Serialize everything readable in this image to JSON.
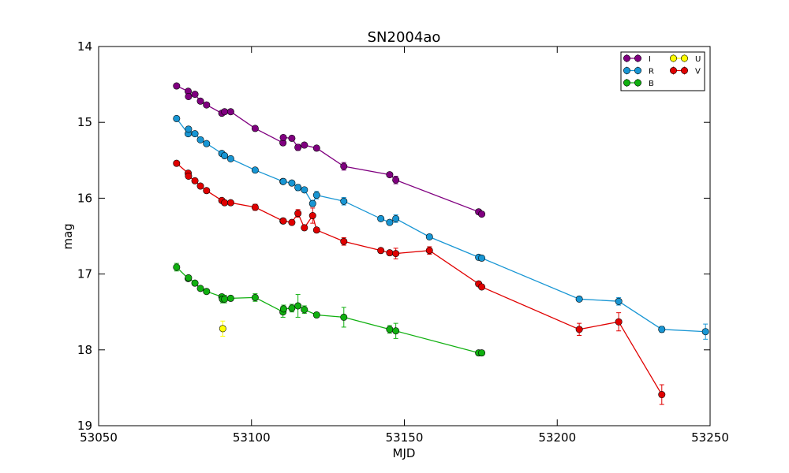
{
  "chart_data": {
    "type": "scatter",
    "title": "SN2004ao",
    "xlabel": "MJD",
    "ylabel": "mag",
    "xlim": [
      53050,
      53250
    ],
    "ylim": [
      14,
      19
    ],
    "y_inverted": true,
    "xticks": [
      "53050",
      "53100",
      "53150",
      "53200",
      "53250"
    ],
    "yticks": [
      "14",
      "15",
      "16",
      "17",
      "18",
      "19"
    ],
    "grid": false,
    "legend_position": "top-right",
    "series": [
      {
        "name": "I",
        "color": "#800080",
        "connected": true,
        "points": [
          [
            53075.5,
            14.52,
            0.02
          ],
          [
            53079.3,
            14.59,
            0.02
          ],
          [
            53079.4,
            14.66,
            0.02
          ],
          [
            53081.5,
            14.63,
            0.02
          ],
          [
            53083.3,
            14.72,
            0.02
          ],
          [
            53085.3,
            14.77,
            0.02
          ],
          [
            53090.3,
            14.88,
            0.02
          ],
          [
            53091.2,
            14.86,
            0.02
          ],
          [
            53093.2,
            14.86,
            0.02
          ],
          [
            53101.2,
            15.08,
            0.03
          ],
          [
            53110.3,
            15.27,
            0.03
          ],
          [
            53110.4,
            15.2,
            0.03
          ],
          [
            53113.2,
            15.21,
            0.03
          ],
          [
            53115.2,
            15.33,
            0.04
          ],
          [
            53117.3,
            15.3,
            0.03
          ],
          [
            53121.3,
            15.34,
            0.03
          ],
          [
            53130.2,
            15.58,
            0.05
          ],
          [
            53145.2,
            15.69,
            0.03
          ],
          [
            53147.2,
            15.76,
            0.05
          ],
          [
            53174.3,
            16.18,
            0.03
          ],
          [
            53175.3,
            16.21,
            0.03
          ]
        ]
      },
      {
        "name": "R",
        "color": "#1896d4",
        "connected": true,
        "points": [
          [
            53075.5,
            14.95,
            0.02
          ],
          [
            53079.3,
            15.15,
            0.02
          ],
          [
            53079.4,
            15.09,
            0.02
          ],
          [
            53081.5,
            15.15,
            0.02
          ],
          [
            53083.3,
            15.23,
            0.02
          ],
          [
            53085.3,
            15.28,
            0.02
          ],
          [
            53090.3,
            15.41,
            0.02
          ],
          [
            53091.2,
            15.44,
            0.02
          ],
          [
            53093.2,
            15.48,
            0.02
          ],
          [
            53101.2,
            15.63,
            0.02
          ],
          [
            53110.3,
            15.78,
            0.02
          ],
          [
            53110.4,
            15.78,
            0.02
          ],
          [
            53113.2,
            15.8,
            0.02
          ],
          [
            53115.2,
            15.86,
            0.04
          ],
          [
            53117.3,
            15.89,
            0.02
          ],
          [
            53120.0,
            16.07,
            0.04
          ],
          [
            53121.3,
            15.96,
            0.05
          ],
          [
            53130.2,
            16.04,
            0.05
          ],
          [
            53142.3,
            16.27,
            0.03
          ],
          [
            53145.2,
            16.32,
            0.03
          ],
          [
            53147.2,
            16.27,
            0.05
          ],
          [
            53158.2,
            16.51,
            0.03
          ],
          [
            53174.3,
            16.78,
            0.03
          ],
          [
            53175.3,
            16.79,
            0.03
          ],
          [
            53207.2,
            17.33,
            0.03
          ],
          [
            53220.1,
            17.36,
            0.05
          ],
          [
            53234.2,
            17.73,
            0.04
          ],
          [
            53248.5,
            17.76,
            0.1
          ]
        ]
      },
      {
        "name": "B",
        "color": "#10b010",
        "connected": true,
        "points": [
          [
            53075.5,
            16.91,
            0.05
          ],
          [
            53079.3,
            17.06,
            0.03
          ],
          [
            53079.4,
            17.05,
            0.03
          ],
          [
            53081.5,
            17.12,
            0.03
          ],
          [
            53083.3,
            17.19,
            0.03
          ],
          [
            53085.3,
            17.23,
            0.03
          ],
          [
            53090.3,
            17.3,
            0.03
          ],
          [
            53090.5,
            17.33,
            0.05
          ],
          [
            53091.2,
            17.33,
            0.05
          ],
          [
            53093.2,
            17.32,
            0.03
          ],
          [
            53101.2,
            17.31,
            0.05
          ],
          [
            53110.3,
            17.5,
            0.07
          ],
          [
            53110.5,
            17.46,
            0.05
          ],
          [
            53113.2,
            17.45,
            0.05
          ],
          [
            53115.2,
            17.42,
            0.15
          ],
          [
            53117.3,
            17.47,
            0.05
          ],
          [
            53121.3,
            17.54,
            0.03
          ],
          [
            53130.2,
            17.57,
            0.13
          ],
          [
            53145.2,
            17.73,
            0.05
          ],
          [
            53147.2,
            17.75,
            0.1
          ],
          [
            53174.3,
            18.04,
            0.03
          ],
          [
            53175.3,
            18.04,
            0.03
          ]
        ]
      },
      {
        "name": "U",
        "color": "#ffff00",
        "connected": false,
        "points": [
          [
            53090.6,
            17.72,
            0.1
          ]
        ]
      },
      {
        "name": "V",
        "color": "#e00000",
        "connected": true,
        "points": [
          [
            53075.5,
            15.54,
            0.02
          ],
          [
            53079.3,
            15.67,
            0.02
          ],
          [
            53079.4,
            15.71,
            0.02
          ],
          [
            53081.5,
            15.77,
            0.02
          ],
          [
            53083.3,
            15.84,
            0.02
          ],
          [
            53085.3,
            15.9,
            0.02
          ],
          [
            53090.3,
            16.03,
            0.02
          ],
          [
            53091.2,
            16.06,
            0.02
          ],
          [
            53093.2,
            16.06,
            0.02
          ],
          [
            53101.2,
            16.12,
            0.04
          ],
          [
            53110.3,
            16.3,
            0.03
          ],
          [
            53110.4,
            16.3,
            0.03
          ],
          [
            53113.2,
            16.32,
            0.03
          ],
          [
            53115.2,
            16.2,
            0.05
          ],
          [
            53117.3,
            16.39,
            0.03
          ],
          [
            53120.0,
            16.23,
            0.1
          ],
          [
            53121.3,
            16.42,
            0.03
          ],
          [
            53130.2,
            16.57,
            0.05
          ],
          [
            53142.3,
            16.69,
            0.03
          ],
          [
            53145.2,
            16.72,
            0.03
          ],
          [
            53147.2,
            16.73,
            0.07
          ],
          [
            53158.2,
            16.69,
            0.05
          ],
          [
            53174.3,
            17.13,
            0.03
          ],
          [
            53175.3,
            17.17,
            0.03
          ],
          [
            53207.2,
            17.73,
            0.08
          ],
          [
            53220.1,
            17.63,
            0.12
          ],
          [
            53234.2,
            18.59,
            0.13
          ]
        ]
      }
    ]
  }
}
